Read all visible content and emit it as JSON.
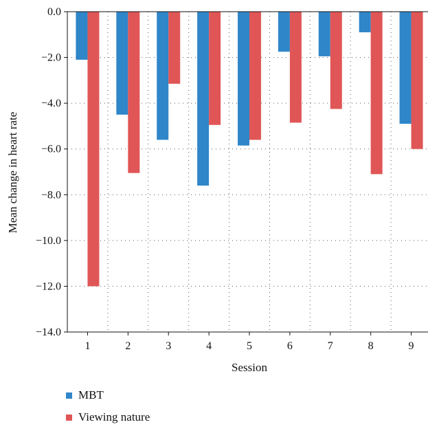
{
  "chart_data": {
    "type": "bar",
    "title": "",
    "xlabel": "Session",
    "ylabel": "Mean change in heart rate",
    "categories": [
      "1",
      "2",
      "3",
      "4",
      "5",
      "6",
      "7",
      "8",
      "9"
    ],
    "ylim": [
      -14.0,
      0.0
    ],
    "yticks": [
      "0.0",
      "-2.0",
      "-4.0",
      "-6.0",
      "-8.0",
      "-10.0",
      "-12.0",
      "-14.0"
    ],
    "ytick_values": [
      0,
      -2,
      -4,
      -6,
      -8,
      -10,
      -12,
      -14
    ],
    "grid": true,
    "legend_position": "bottom",
    "series": [
      {
        "name": "MBT",
        "color": "#2f86c9",
        "values": [
          -2.1,
          -4.5,
          -5.6,
          -7.6,
          -5.85,
          -1.75,
          -1.95,
          -0.9,
          -4.9
        ]
      },
      {
        "name": "Viewing nature",
        "color": "#e05656",
        "values": [
          -12.0,
          -7.05,
          -3.15,
          -4.95,
          -5.6,
          -4.85,
          -4.25,
          -7.1,
          -6.0
        ]
      }
    ]
  }
}
